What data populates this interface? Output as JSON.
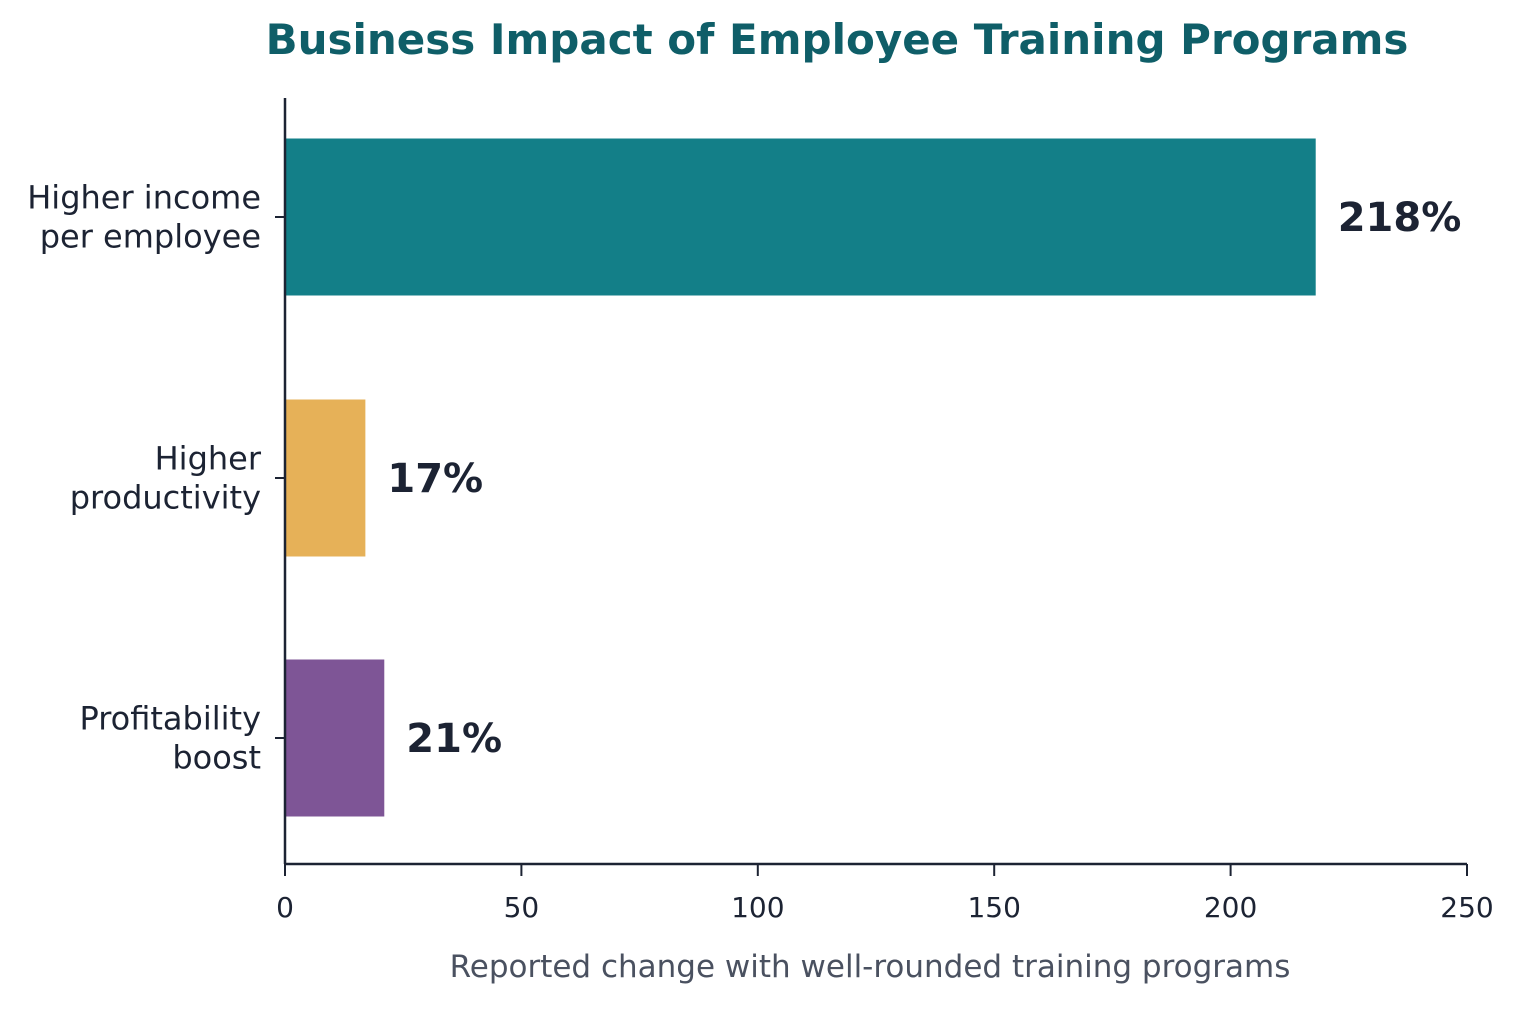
{
  "chart_data": {
    "type": "bar",
    "orientation": "horizontal",
    "title": "Business Impact of Employee Training Programs",
    "xlabel": "Reported change with well-rounded training programs",
    "ylabel": "",
    "xlim": [
      0,
      250
    ],
    "xticks": [
      0,
      50,
      100,
      150,
      200,
      250
    ],
    "grid": false,
    "categories": [
      [
        "Higher income",
        "per employee"
      ],
      [
        "Higher",
        "productivity"
      ],
      [
        "Profitability",
        "boost"
      ]
    ],
    "values": [
      218,
      17,
      21
    ],
    "value_labels": [
      "218%",
      "17%",
      "21%"
    ],
    "colors": [
      "#137f88",
      "#e6b158",
      "#7e5596"
    ],
    "title_color": "#0f5e68",
    "text_color": "#1c2333",
    "axis_color": "#1c2333",
    "axis_title_color": "#4a5160"
  }
}
